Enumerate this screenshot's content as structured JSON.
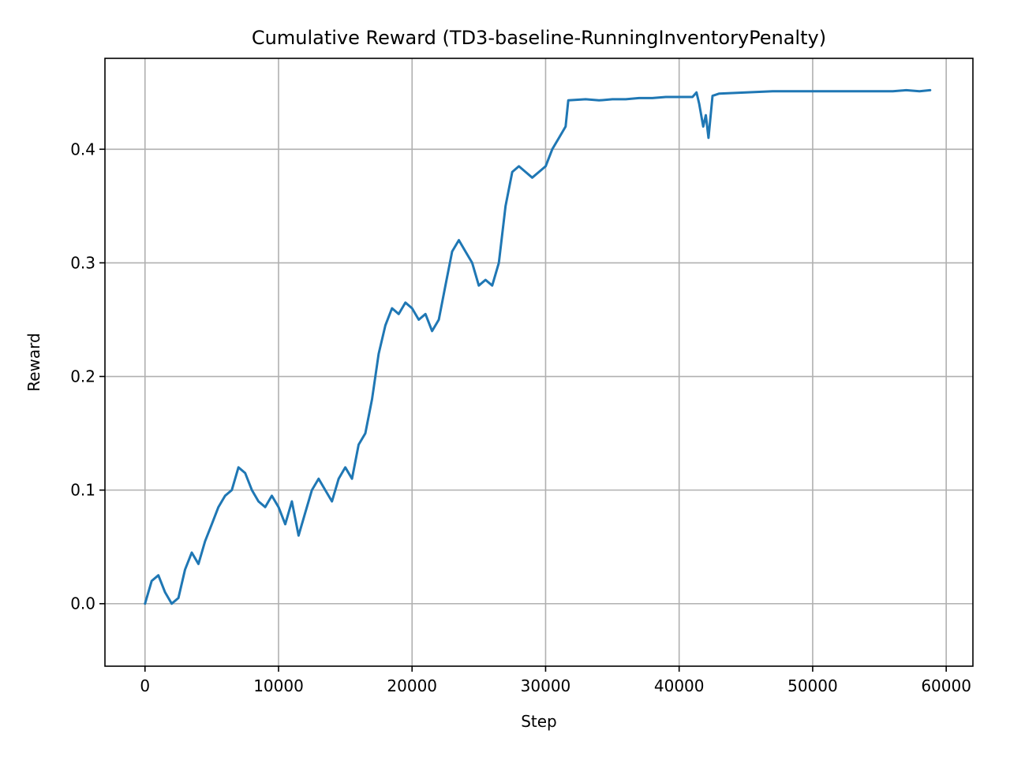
{
  "chart_data": {
    "type": "line",
    "title": "Cumulative Reward (TD3-baseline-RunningInventoryPenalty)",
    "xlabel": "Step",
    "ylabel": "Reward",
    "xlim": [
      -3000,
      62000
    ],
    "ylim": [
      -0.055,
      0.48
    ],
    "xticks": [
      0,
      10000,
      20000,
      30000,
      40000,
      50000,
      60000
    ],
    "xtick_labels": [
      "0",
      "10000",
      "20000",
      "30000",
      "40000",
      "50000",
      "60000"
    ],
    "yticks": [
      0.0,
      0.1,
      0.2,
      0.3,
      0.4
    ],
    "ytick_labels": [
      "0.0",
      "0.1",
      "0.2",
      "0.3",
      "0.4"
    ],
    "grid": true,
    "line_color": "#1f77b4",
    "series": [
      {
        "x": [
          0,
          500,
          1000,
          1500,
          2000,
          2500,
          3000,
          3500,
          4000,
          4500,
          5000,
          5500,
          6000,
          6500,
          7000,
          7500,
          8000,
          8500,
          9000,
          9500,
          10000,
          10500,
          11000,
          11500,
          12000,
          12500,
          13000,
          13500,
          14000,
          14500,
          15000,
          15500,
          16000,
          16500,
          17000,
          17500,
          18000,
          18500,
          19000,
          19500,
          20000,
          20500,
          21000,
          21500,
          22000,
          22500,
          23000,
          23500,
          24000,
          24500,
          25000,
          25500,
          26000,
          26500,
          27000,
          27500,
          28000,
          28500,
          29000,
          29500,
          30000,
          30500,
          31000,
          31500,
          31700,
          33000,
          34000,
          35000,
          36000,
          37000,
          38000,
          39000,
          40000,
          41000,
          41300,
          41500,
          41800,
          42000,
          42200,
          42500,
          43000,
          45000,
          47000,
          50000,
          53000,
          55000,
          56000,
          57000,
          58000,
          58800
        ],
        "y": [
          0.0,
          0.02,
          0.025,
          0.01,
          0.0,
          0.005,
          0.03,
          0.045,
          0.035,
          0.055,
          0.07,
          0.085,
          0.095,
          0.1,
          0.12,
          0.115,
          0.1,
          0.09,
          0.085,
          0.095,
          0.085,
          0.07,
          0.09,
          0.06,
          0.08,
          0.1,
          0.11,
          0.1,
          0.09,
          0.11,
          0.12,
          0.11,
          0.14,
          0.15,
          0.18,
          0.22,
          0.245,
          0.26,
          0.255,
          0.265,
          0.26,
          0.25,
          0.255,
          0.24,
          0.25,
          0.28,
          0.31,
          0.32,
          0.31,
          0.3,
          0.28,
          0.285,
          0.28,
          0.3,
          0.35,
          0.38,
          0.385,
          0.38,
          0.375,
          0.38,
          0.385,
          0.4,
          0.41,
          0.42,
          0.443,
          0.444,
          0.443,
          0.444,
          0.444,
          0.445,
          0.445,
          0.446,
          0.446,
          0.446,
          0.45,
          0.44,
          0.42,
          0.43,
          0.41,
          0.447,
          0.449,
          0.45,
          0.451,
          0.451,
          0.451,
          0.451,
          0.451,
          0.452,
          0.451,
          0.452
        ]
      }
    ]
  }
}
